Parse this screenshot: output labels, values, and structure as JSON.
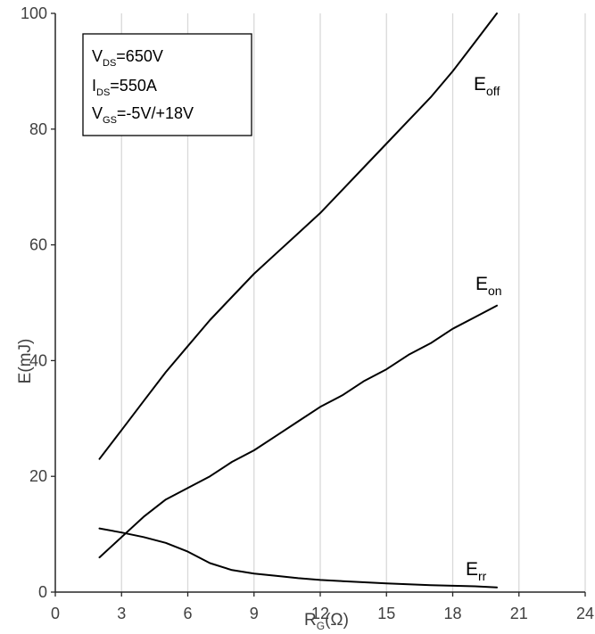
{
  "chart_data": {
    "type": "line",
    "title": "",
    "xlabel": "R",
    "xlabel_sub": "G",
    "xlabel_unit": "(Ω)",
    "ylabel": "E(mJ)",
    "xlim": [
      0,
      24
    ],
    "ylim": [
      0,
      100
    ],
    "xticks": [
      0,
      3,
      6,
      9,
      12,
      15,
      18,
      21,
      24
    ],
    "yticks": [
      0,
      20,
      40,
      60,
      80,
      100
    ],
    "grid": "vertical",
    "annotation_box": [
      {
        "main": "V",
        "sub": "DS",
        "rest": "=650V"
      },
      {
        "main": "I",
        "sub": "DS",
        "rest": "=550A"
      },
      {
        "main": "V",
        "sub": "GS",
        "rest": "=-5V/+18V"
      }
    ],
    "series": [
      {
        "name": "Eoff",
        "label_main": "E",
        "label_sub": "off",
        "x": [
          2,
          3,
          4,
          5,
          6,
          7,
          8,
          9,
          10,
          11,
          12,
          13,
          14,
          15,
          16,
          17,
          18,
          19,
          20
        ],
        "y": [
          23,
          28,
          33,
          38,
          42.5,
          47,
          51,
          55,
          58.5,
          62,
          65.5,
          69.5,
          73.5,
          77.5,
          81.5,
          85.5,
          90,
          95,
          100
        ]
      },
      {
        "name": "Eon",
        "label_main": "E",
        "label_sub": "on",
        "x": [
          2,
          3,
          4,
          5,
          6,
          7,
          8,
          9,
          10,
          11,
          12,
          13,
          14,
          15,
          16,
          17,
          18,
          19,
          20
        ],
        "y": [
          6,
          9.5,
          13,
          16,
          18,
          20,
          22.5,
          24.5,
          27,
          29.5,
          32,
          34,
          36.5,
          38.5,
          41,
          43,
          45.5,
          47.5,
          49.5
        ]
      },
      {
        "name": "Err",
        "label_main": "E",
        "label_sub": "rr",
        "x": [
          2,
          3,
          4,
          5,
          6,
          7,
          8,
          9,
          10,
          11,
          12,
          13,
          14,
          15,
          16,
          17,
          18,
          19,
          20
        ],
        "y": [
          11,
          10.3,
          9.5,
          8.5,
          7,
          5,
          3.8,
          3.2,
          2.8,
          2.4,
          2.1,
          1.9,
          1.7,
          1.5,
          1.35,
          1.2,
          1.1,
          1.0,
          0.8
        ]
      }
    ]
  }
}
